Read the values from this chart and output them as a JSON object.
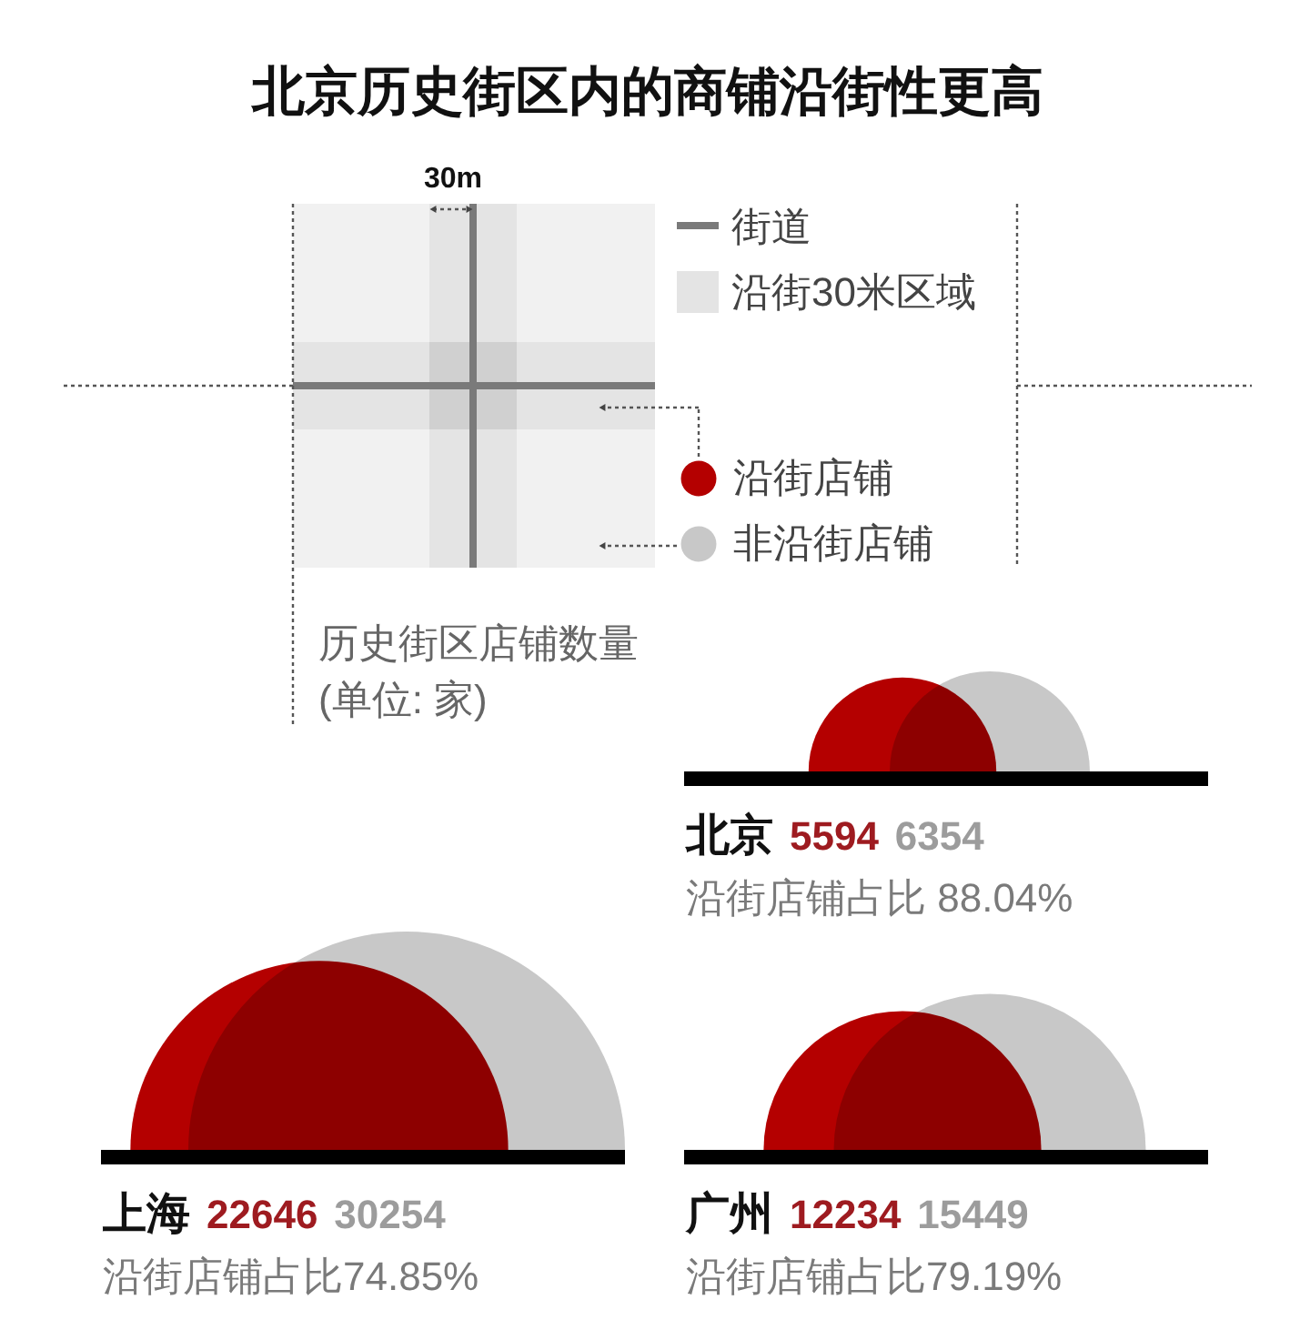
{
  "chart_data": {
    "type": "other",
    "title": "北京历史街区内的商铺沿街性更高",
    "categories": [
      "北京",
      "上海",
      "广州"
    ],
    "series": [
      {
        "name": "沿街店铺",
        "color": "#b40000",
        "values": [
          5594,
          22646,
          12234
        ]
      },
      {
        "name": "非沿街店铺",
        "color": "#c8c8c8",
        "values": [
          6354,
          30254,
          15449
        ]
      }
    ],
    "data_labels": true,
    "legend": "top right",
    "annotations": [
      "30m",
      "街道",
      "沿街30米区域",
      "历史街区店铺数量\n(单位: 家)",
      "沿街店铺占比 88.04%",
      "沿街店铺占比74.85%",
      "沿街店铺占比79.19%"
    ]
  }
}
